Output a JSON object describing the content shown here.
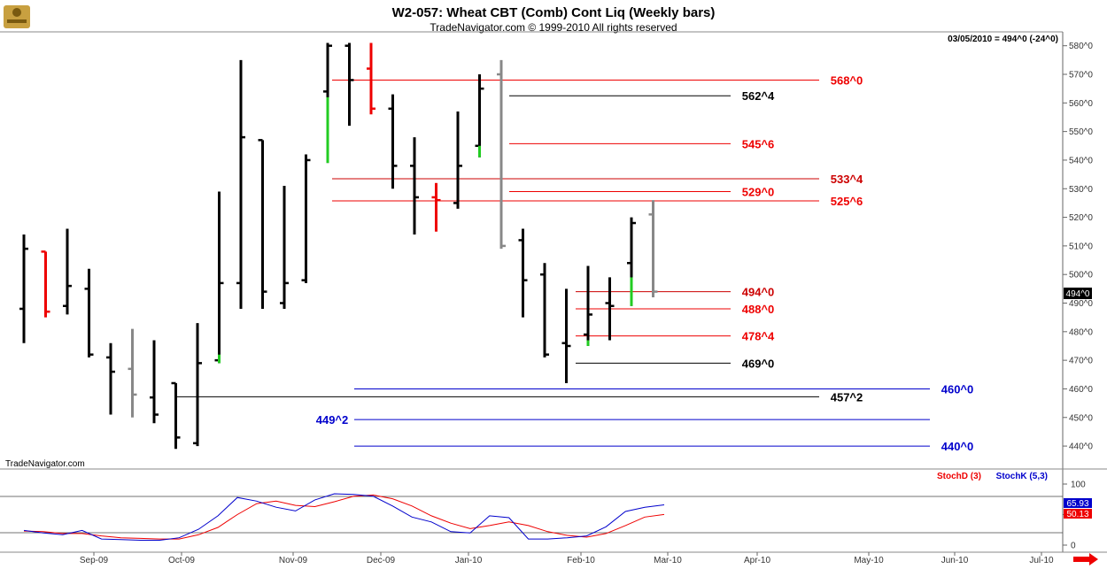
{
  "chart_data": {
    "type": "ohlc",
    "title": "W2-057:  Wheat CBT (Comb) Cont Liq  (Weekly bars)",
    "subtitle": "TradeNavigator.com © 1999-2010 All rights reserved",
    "watermark": "TradeNavigator.com",
    "last_bar_readout": "03/05/2010 = 494^0 (-24^0)",
    "last_price_tag": "494^0",
    "ylim": [
      436,
      583
    ],
    "y_ticks": [
      "580^0",
      "570^0",
      "560^0",
      "550^0",
      "540^0",
      "530^0",
      "520^0",
      "510^0",
      "500^0",
      "490^0",
      "480^0",
      "470^0",
      "460^0",
      "450^0",
      "440^0"
    ],
    "x_ticks": [
      "Sep-09",
      "Oct-09",
      "Nov-09",
      "Dec-09",
      "Jan-10",
      "Feb-10",
      "Mar-10",
      "Apr-10",
      "May-10",
      "Jun-10",
      "Jul-10"
    ],
    "bars": [
      {
        "open": 488,
        "high": 514,
        "low": 476,
        "close": 509,
        "color": "#000000"
      },
      {
        "open": 508,
        "high": 508,
        "low": 485,
        "close": 487,
        "color": "#ee0000"
      },
      {
        "open": 489,
        "high": 516,
        "low": 486,
        "close": 496,
        "color": "#000000"
      },
      {
        "open": 495,
        "high": 502,
        "low": 471,
        "close": 472,
        "color": "#000000"
      },
      {
        "open": 471,
        "high": 476,
        "low": 451,
        "close": 466,
        "color": "#000000"
      },
      {
        "open": 467,
        "high": 481,
        "low": 450,
        "close": 458,
        "color": "#888888"
      },
      {
        "open": 457,
        "high": 477,
        "low": 448,
        "close": 451,
        "color": "#000000"
      },
      {
        "open": 462,
        "high": 462,
        "low": 439,
        "close": 443,
        "color": "#000000"
      },
      {
        "open": 441,
        "high": 483,
        "low": 440,
        "close": 469,
        "color": "#000000"
      },
      {
        "open": 470,
        "high": 529,
        "low": 469,
        "close": 497,
        "color": "#000000",
        "extra": {
          "range": [
            469,
            472
          ],
          "color": "#22cc22"
        }
      },
      {
        "open": 497,
        "high": 575,
        "low": 488,
        "close": 548,
        "color": "#000000"
      },
      {
        "open": 547,
        "high": 547,
        "low": 488,
        "close": 494,
        "color": "#000000"
      },
      {
        "open": 490,
        "high": 531,
        "low": 488,
        "close": 497,
        "color": "#000000"
      },
      {
        "open": 498,
        "high": 542,
        "low": 497,
        "close": 540,
        "color": "#000000"
      },
      {
        "open": 564,
        "high": 581,
        "low": 539,
        "close": 580,
        "color": "#000000",
        "extra": {
          "range": [
            539,
            562
          ],
          "color": "#22cc22"
        }
      },
      {
        "open": 580,
        "high": 581,
        "low": 552,
        "close": 568,
        "color": "#000000"
      },
      {
        "open": 572,
        "high": 581,
        "low": 556,
        "close": 558,
        "color": "#ee0000"
      },
      {
        "open": 558,
        "high": 563,
        "low": 530,
        "close": 538,
        "color": "#000000"
      },
      {
        "open": 538,
        "high": 548,
        "low": 514,
        "close": 527,
        "color": "#000000"
      },
      {
        "open": 527,
        "high": 532,
        "low": 515,
        "close": 526,
        "color": "#ee0000"
      },
      {
        "open": 525,
        "high": 557,
        "low": 523,
        "close": 538,
        "color": "#000000"
      },
      {
        "open": 545,
        "high": 570,
        "low": 541,
        "close": 565,
        "color": "#000000",
        "extra": {
          "range": [
            541,
            545
          ],
          "color": "#22cc22"
        }
      },
      {
        "open": 570,
        "high": 575,
        "low": 509,
        "close": 510,
        "color": "#888888"
      },
      {
        "open": 512,
        "high": 516,
        "low": 485,
        "close": 498,
        "color": "#000000"
      },
      {
        "open": 500,
        "high": 504,
        "low": 471,
        "close": 472,
        "color": "#000000"
      },
      {
        "open": 476,
        "high": 495,
        "low": 462,
        "close": 475,
        "color": "#000000"
      },
      {
        "open": 479,
        "high": 503,
        "low": 475,
        "close": 486,
        "color": "#000000",
        "extra": {
          "range": [
            475,
            477
          ],
          "color": "#22cc22"
        }
      },
      {
        "open": 490,
        "high": 499,
        "low": 477,
        "close": 489,
        "color": "#000000"
      },
      {
        "open": 504,
        "high": 520,
        "low": 489,
        "close": 518,
        "color": "#000000",
        "extra": {
          "range": [
            489,
            499
          ],
          "color": "#22cc22"
        }
      },
      {
        "open": 521,
        "high": 526,
        "low": 492,
        "close": 494,
        "color": "#888888"
      }
    ],
    "levels": [
      {
        "label": "568^0",
        "value": 568,
        "color": "#ee0000"
      },
      {
        "label": "562^4",
        "value": 562.5,
        "color": "#000000"
      },
      {
        "label": "545^6",
        "value": 545.75,
        "color": "#ee0000"
      },
      {
        "label": "533^4",
        "value": 533.5,
        "color": "#cc0000"
      },
      {
        "label": "529^0",
        "value": 529,
        "color": "#ee0000"
      },
      {
        "label": "525^6",
        "value": 525.75,
        "color": "#ee0000"
      },
      {
        "label": "494^0",
        "value": 494,
        "color": "#cc0000"
      },
      {
        "label": "488^0",
        "value": 488,
        "color": "#ee0000"
      },
      {
        "label": "478^4",
        "value": 478.5,
        "color": "#ee0000"
      },
      {
        "label": "469^0",
        "value": 469,
        "color": "#000000"
      },
      {
        "label": "460^0",
        "value": 460,
        "color": "#0000cc"
      },
      {
        "label": "457^2",
        "value": 457.25,
        "color": "#000000"
      },
      {
        "label": "449^2",
        "value": 449.25,
        "color": "#0000cc"
      },
      {
        "label": "440^0",
        "value": 440,
        "color": "#0000cc"
      }
    ],
    "stochastic": {
      "legend_d": "StochD (3)",
      "legend_k": "StochK (5,3)",
      "ylim": [
        0,
        100
      ],
      "y_ticks": [
        "100",
        "50",
        "0"
      ],
      "k_last": "65.93",
      "d_last": "50.13",
      "color_k": "#0000cc",
      "color_d": "#ee0000",
      "k_values": [
        24,
        20,
        17,
        24,
        10,
        9,
        8,
        8,
        12,
        26,
        48,
        78,
        72,
        62,
        56,
        74,
        84,
        83,
        80,
        64,
        46,
        38,
        22,
        20,
        48,
        45,
        10,
        10,
        12,
        15,
        30,
        55,
        62,
        65.93
      ],
      "d_values": [
        23,
        22,
        19,
        19,
        15,
        12,
        11,
        10,
        10,
        17,
        29,
        50,
        68,
        72,
        65,
        63,
        71,
        80,
        82,
        76,
        64,
        48,
        36,
        27,
        32,
        38,
        32,
        22,
        16,
        13,
        19,
        32,
        46,
        50.13
      ]
    }
  }
}
